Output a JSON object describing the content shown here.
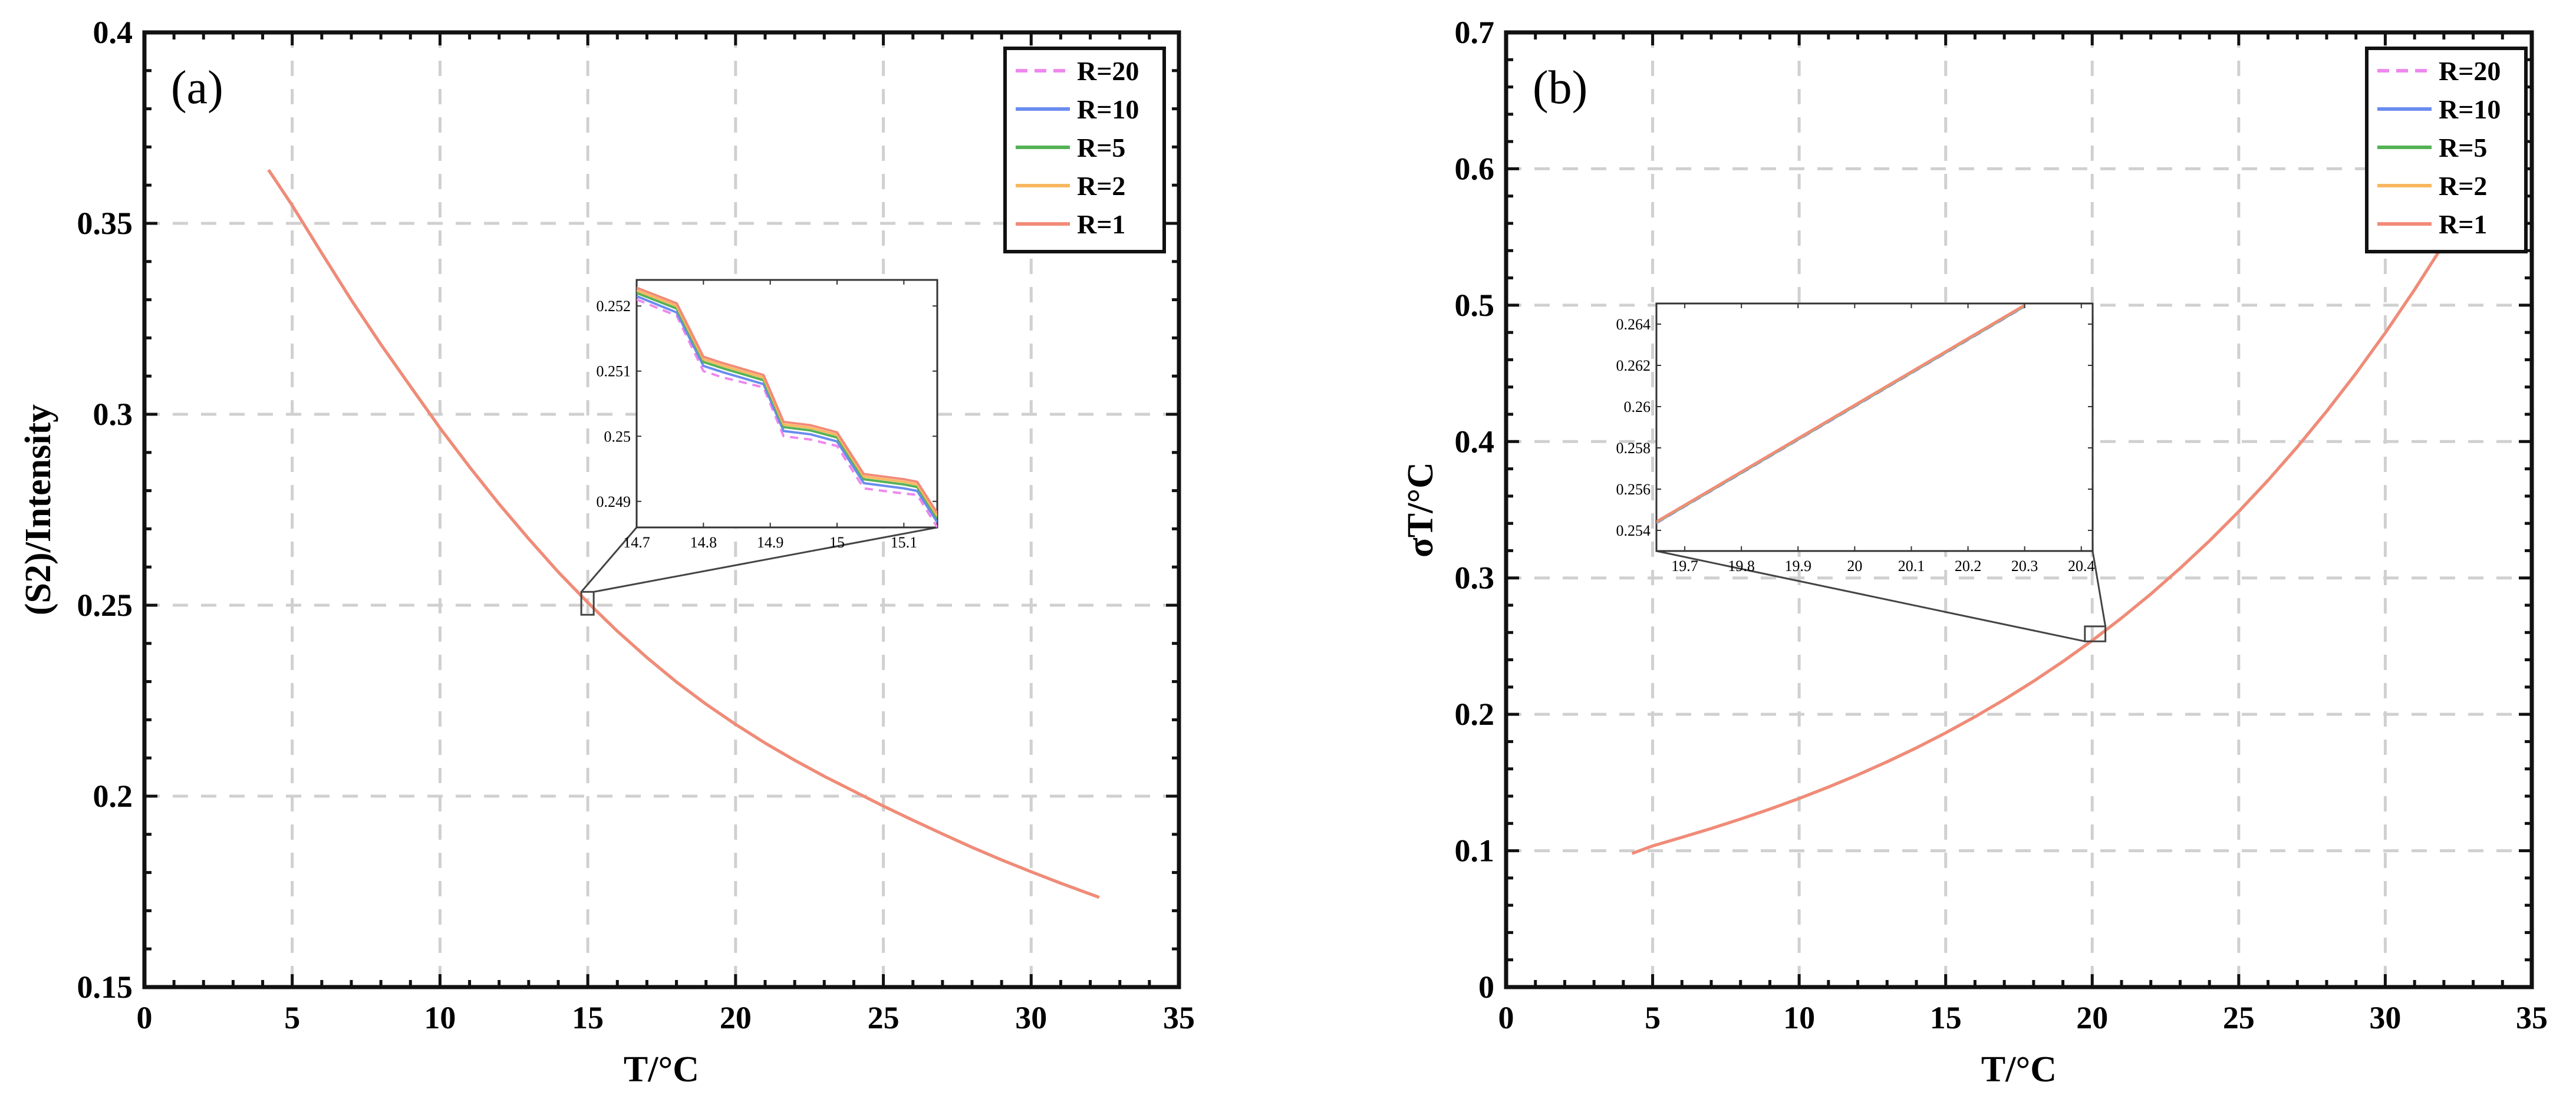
{
  "colors": {
    "grid": "#d0d0d0",
    "axis": "#111111",
    "inset_axis": "#333333",
    "connector": "#444444"
  },
  "chart_data": [
    {
      "type": "line",
      "panel_label": "(a)",
      "title": "",
      "xlabel": "T/°C",
      "ylabel": "(S2)/Intensity",
      "xlim": [
        0,
        35
      ],
      "ylim": [
        0.15,
        0.4
      ],
      "xticks": [
        0,
        5,
        10,
        15,
        20,
        25,
        30,
        35
      ],
      "yticks": [
        0.15,
        0.2,
        0.25,
        0.3,
        0.35,
        0.4
      ],
      "ytick_labels": [
        "0.15",
        "0.2",
        "0.25",
        "0.3",
        "0.35",
        "0.4"
      ],
      "grid": true,
      "legend_position": "top-right",
      "series": [
        {
          "name": "R=20",
          "color": "#ee88ee",
          "dashed": true
        },
        {
          "name": "R=10",
          "color": "#6a8cf0",
          "dashed": false
        },
        {
          "name": "R=5",
          "color": "#55b255",
          "dashed": false
        },
        {
          "name": "R=2",
          "color": "#f8b860",
          "dashed": false
        },
        {
          "name": "R=1",
          "color": "#f28a78",
          "dashed": false
        }
      ],
      "x": [
        4.2,
        5,
        6,
        7,
        8,
        9,
        10,
        11,
        12,
        13,
        14,
        15,
        16,
        17,
        18,
        19,
        20,
        21,
        22,
        23,
        24,
        25,
        26,
        27,
        28,
        29,
        30,
        31,
        32.3
      ],
      "values": [
        0.364,
        0.3547,
        0.3422,
        0.3299,
        0.3183,
        0.3073,
        0.2964,
        0.2862,
        0.2765,
        0.2674,
        0.2587,
        0.2507,
        0.2432,
        0.2363,
        0.2299,
        0.2241,
        0.2188,
        0.2139,
        0.2094,
        0.2052,
        0.2013,
        0.1974,
        0.1937,
        0.1901,
        0.1866,
        0.1833,
        0.1802,
        0.1772,
        0.1735
      ],
      "zoom_box": {
        "xlim": [
          14.78,
          15.2
        ],
        "ylim": [
          0.2475,
          0.2535
        ]
      },
      "inset": {
        "xlim": [
          14.7,
          15.15
        ],
        "ylim": [
          0.2486,
          0.2524
        ],
        "xticks": [
          14.7,
          14.8,
          14.9,
          15,
          15.1
        ],
        "xtick_labels": [
          "14.7",
          "14.8",
          "14.9",
          "15",
          "15.1"
        ],
        "yticks": [
          0.249,
          0.25,
          0.251,
          0.252
        ],
        "ytick_labels": [
          "0.249",
          "0.25",
          "0.251",
          "0.252"
        ],
        "x": [
          14.7,
          14.76,
          14.8,
          14.83,
          14.89,
          14.92,
          14.96,
          15.0,
          15.04,
          15.1,
          15.12,
          15.15
        ],
        "series_values": [
          [
            0.2521,
            0.25185,
            0.251,
            0.2509,
            0.25075,
            0.25,
            0.24995,
            0.24985,
            0.2492,
            0.24912,
            0.2491,
            0.2486
          ],
          [
            0.25215,
            0.2519,
            0.25108,
            0.25098,
            0.2508,
            0.25008,
            0.25003,
            0.24992,
            0.24928,
            0.2492,
            0.24916,
            0.24868
          ],
          [
            0.2522,
            0.25196,
            0.25114,
            0.25104,
            0.25086,
            0.25014,
            0.25009,
            0.24998,
            0.24934,
            0.24926,
            0.24922,
            0.24874
          ],
          [
            0.25224,
            0.252,
            0.25118,
            0.25108,
            0.2509,
            0.25018,
            0.25013,
            0.25002,
            0.24938,
            0.2493,
            0.24926,
            0.24878
          ],
          [
            0.25228,
            0.25204,
            0.25122,
            0.25112,
            0.25094,
            0.25022,
            0.25017,
            0.25006,
            0.24942,
            0.24934,
            0.2493,
            0.24882
          ]
        ]
      }
    },
    {
      "type": "line",
      "panel_label": "(b)",
      "title": "",
      "xlabel": "T/°C",
      "ylabel": "σT/°C",
      "xlim": [
        0,
        35
      ],
      "ylim": [
        0,
        0.7
      ],
      "xticks": [
        0,
        5,
        10,
        15,
        20,
        25,
        30,
        35
      ],
      "yticks": [
        0,
        0.1,
        0.2,
        0.3,
        0.4,
        0.5,
        0.6,
        0.7
      ],
      "ytick_labels": [
        "0",
        "0.1",
        "0.2",
        "0.3",
        "0.4",
        "0.5",
        "0.6",
        "0.7"
      ],
      "grid": true,
      "legend_position": "top-right",
      "series": [
        {
          "name": "R=20",
          "color": "#ee88ee",
          "dashed": true
        },
        {
          "name": "R=10",
          "color": "#6a8cf0",
          "dashed": false
        },
        {
          "name": "R=5",
          "color": "#55b255",
          "dashed": false
        },
        {
          "name": "R=2",
          "color": "#f8b860",
          "dashed": false
        },
        {
          "name": "R=1",
          "color": "#f28a78",
          "dashed": false
        }
      ],
      "x": [
        4.3,
        5,
        6,
        7,
        8,
        9,
        10,
        11,
        12,
        13,
        14,
        15,
        16,
        17,
        18,
        19,
        20,
        21,
        22,
        23,
        24,
        25,
        26,
        27,
        28,
        29,
        30,
        31,
        32
      ],
      "values": [
        0.098,
        0.1035,
        0.1098,
        0.1163,
        0.1232,
        0.1305,
        0.1383,
        0.1467,
        0.1556,
        0.1652,
        0.1754,
        0.1864,
        0.1982,
        0.2108,
        0.2243,
        0.2387,
        0.2541,
        0.2706,
        0.2882,
        0.3071,
        0.3272,
        0.3487,
        0.3716,
        0.3961,
        0.4222,
        0.45,
        0.4797,
        0.5114,
        0.545
      ],
      "clip_top_series_value": 0.545,
      "zoom_box": {
        "xlim": [
          19.75,
          20.45
        ],
        "ylim": [
          0.2535,
          0.2645
        ]
      },
      "inset": {
        "xlim": [
          19.65,
          20.42
        ],
        "ylim": [
          0.253,
          0.265
        ],
        "xticks": [
          19.7,
          19.8,
          19.9,
          20,
          20.1,
          20.2,
          20.3,
          20.4
        ],
        "xtick_labels": [
          "19.7",
          "19.8",
          "19.9",
          "20",
          "20.1",
          "20.2",
          "20.3",
          "20.4"
        ],
        "yticks": [
          0.254,
          0.256,
          0.258,
          0.26,
          0.262,
          0.264
        ],
        "ytick_labels": [
          "0.254",
          "0.256",
          "0.258",
          "0.26",
          "0.262",
          "0.264"
        ],
        "x": [
          19.65,
          20.3
        ],
        "series_values": [
          [
            0.25435,
            0.26485
          ],
          [
            0.25437,
            0.26487
          ],
          [
            0.25439,
            0.26489
          ],
          [
            0.25441,
            0.26491
          ],
          [
            0.25443,
            0.26493
          ]
        ]
      }
    }
  ]
}
